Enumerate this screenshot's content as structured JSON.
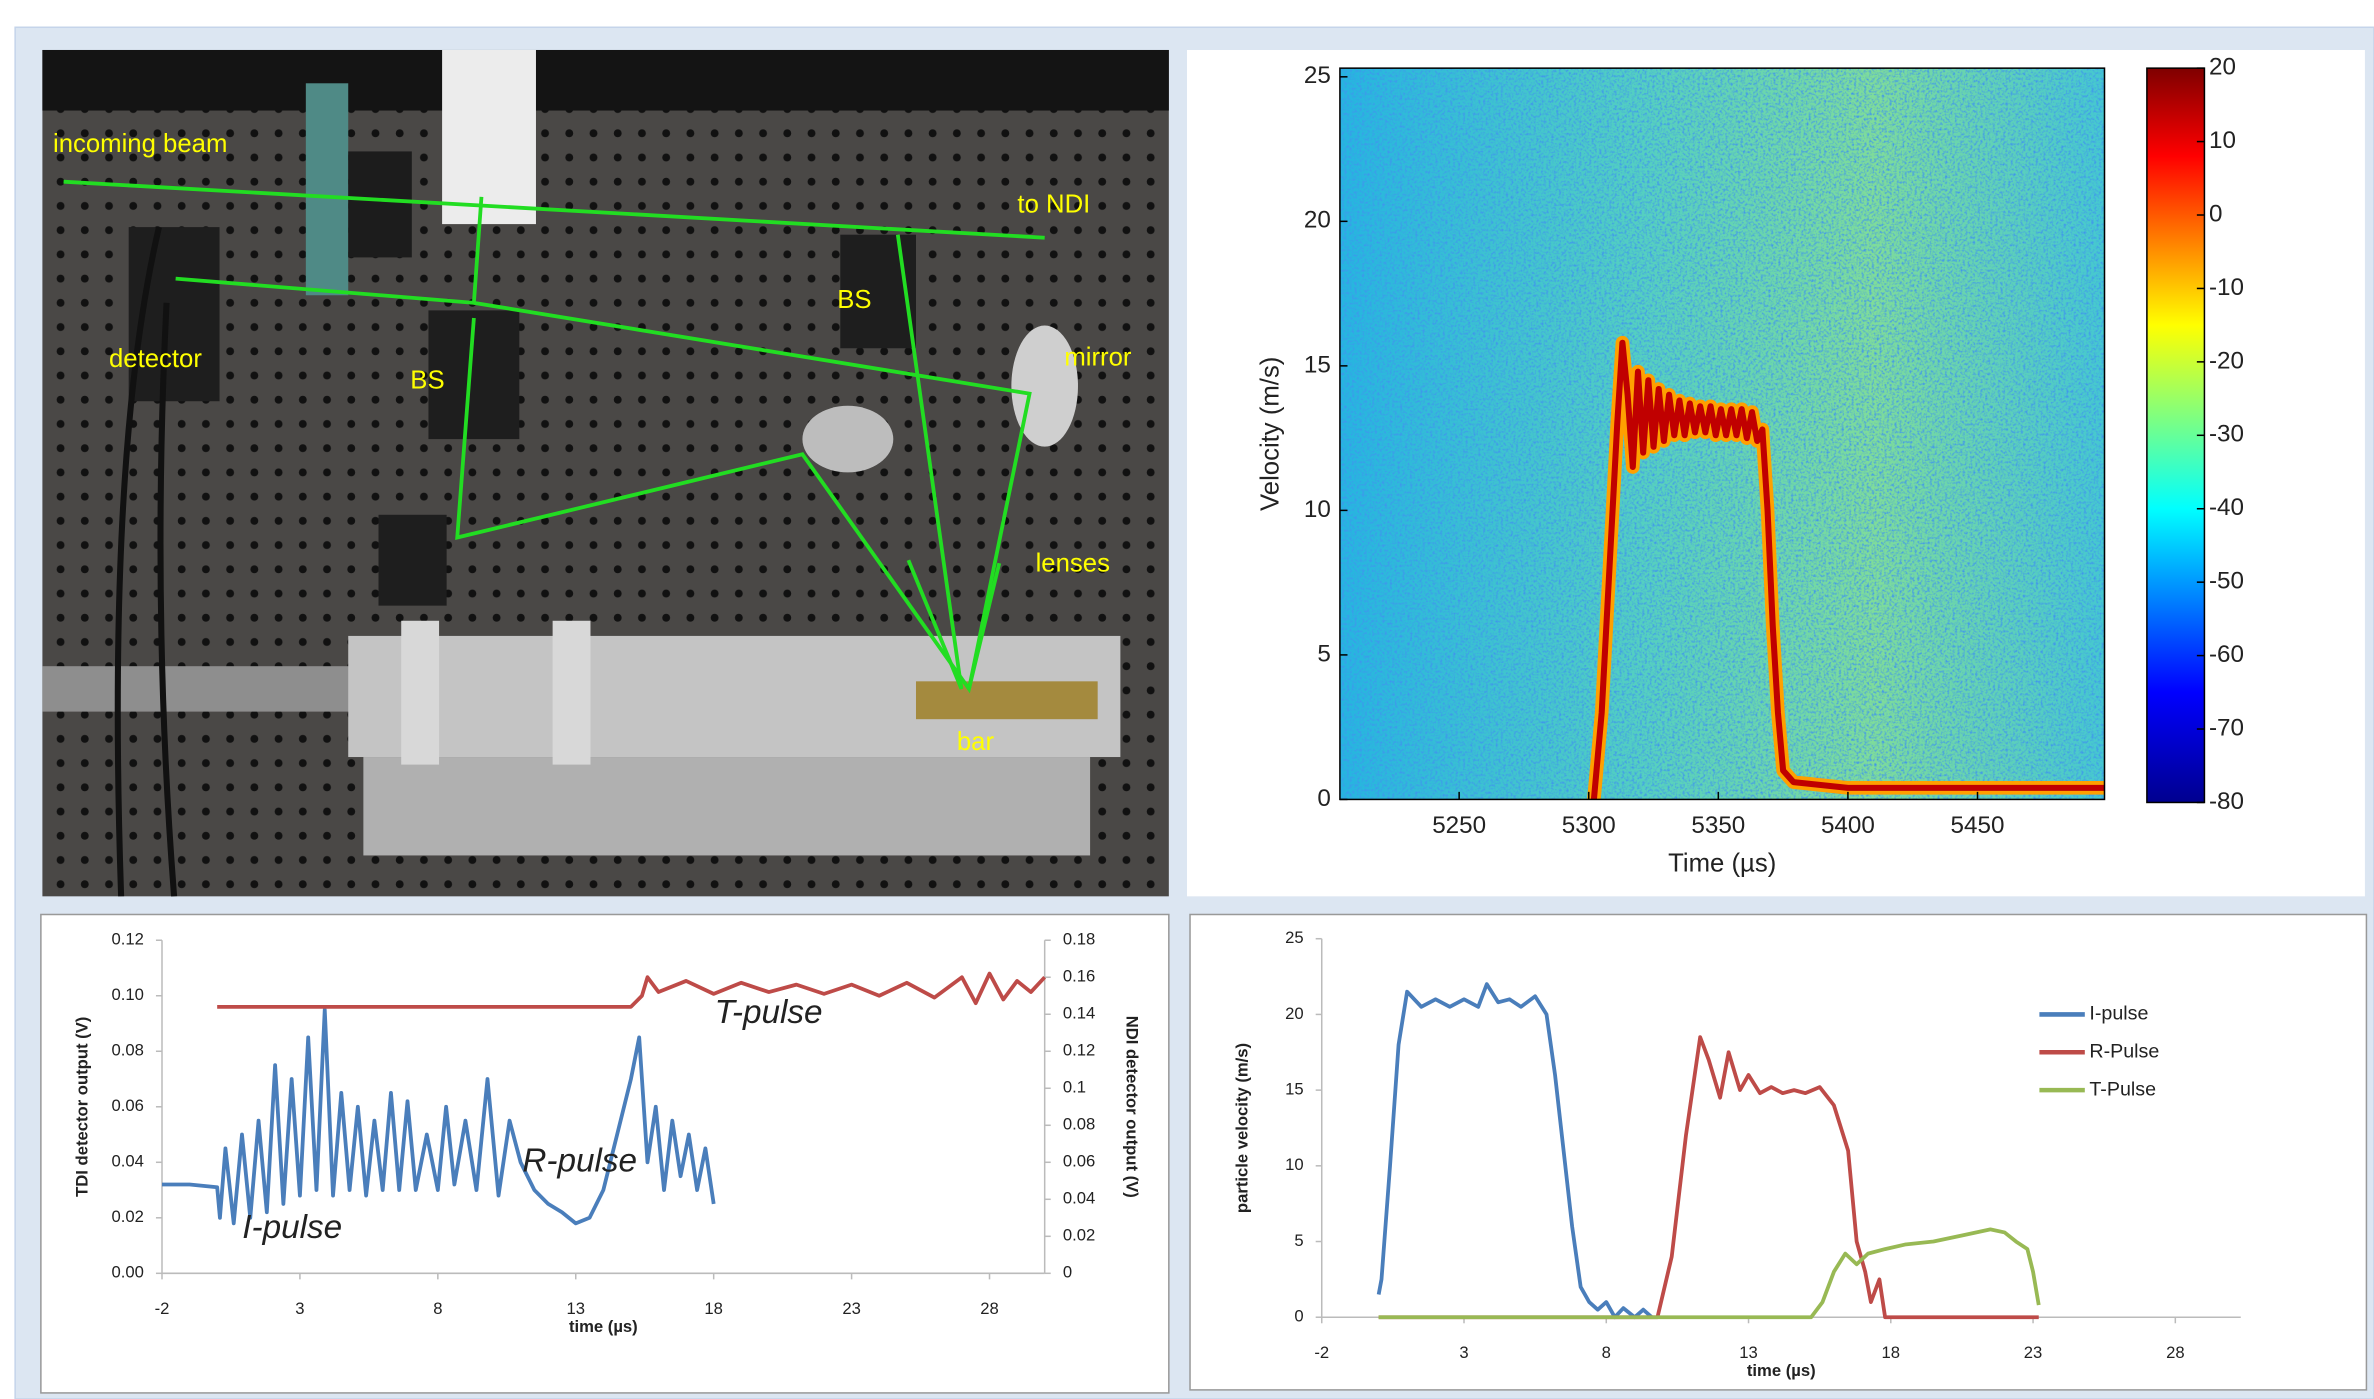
{
  "photo": {
    "labels": [
      "incoming beam",
      "to NDI",
      "BS",
      "BS",
      "detector",
      "mirror",
      "lenses",
      "bar"
    ]
  },
  "chart_data": [
    {
      "type": "spectrogram",
      "xlabel": "Time (µs)",
      "ylabel": "Velocity (m/s)",
      "xlim": [
        5204,
        5499
      ],
      "xticks": [
        5250,
        5300,
        5350,
        5400,
        5450
      ],
      "ylim": [
        0,
        25.3
      ],
      "yticks": [
        0,
        5,
        10,
        15,
        20,
        25
      ],
      "clim": [
        -80,
        20
      ],
      "cticks": [
        20,
        10,
        0,
        -10,
        -20,
        -30,
        -40,
        -50,
        -60,
        -70,
        -80
      ],
      "series": [
        {
          "color": "#c00000",
          "x": [
            5302,
            5305,
            5308,
            5311,
            5313,
            5315,
            5317,
            5319,
            5321,
            5323,
            5325,
            5327,
            5329,
            5331,
            5333,
            5335,
            5337,
            5339,
            5341,
            5343,
            5345,
            5347,
            5349,
            5351,
            5353,
            5355,
            5357,
            5359,
            5361,
            5363,
            5365,
            5367,
            5369,
            5371,
            5373,
            5375,
            5377,
            5379,
            5400,
            5450,
            5499
          ],
          "values": [
            0,
            3,
            8,
            13,
            15.8,
            14,
            11.5,
            14.8,
            12,
            14.5,
            12.2,
            14.2,
            12.4,
            14,
            12.6,
            13.8,
            12.6,
            13.7,
            12.7,
            13.6,
            12.7,
            13.6,
            12.6,
            13.5,
            12.6,
            13.5,
            12.6,
            13.5,
            12.5,
            13.4,
            12.4,
            12.8,
            10,
            6,
            3,
            1,
            0.8,
            0.6,
            0.4,
            0.4,
            0.4
          ]
        }
      ]
    },
    {
      "type": "line",
      "xlabel": "time (µs)",
      "ylabel": "TDI detector output (V)",
      "y2label": "NDI detector output (V)",
      "xlim": [
        -2,
        30
      ],
      "xticks": [
        -2,
        3,
        8,
        13,
        18,
        23,
        28
      ],
      "ylim": [
        0,
        0.12
      ],
      "yticks": [
        {
          "value": 0,
          "label": "0.00"
        },
        0.02,
        0.04,
        0.06,
        0.08,
        {
          "value": 0.1,
          "label": "0.10"
        },
        0.12
      ],
      "y2lim": [
        0,
        0.18
      ],
      "y2ticks": [
        0,
        0.02,
        0.04,
        0.06,
        0.08,
        0.1,
        0.12,
        0.14,
        0.16,
        0.18
      ],
      "annotations": [
        "I-pulse",
        "R-pulse",
        "T-pulse"
      ],
      "series": [
        {
          "color": "#4a7ebb",
          "x": [
            -2,
            -1,
            0,
            0.1,
            0.3,
            0.6,
            0.9,
            1.2,
            1.5,
            1.8,
            2.1,
            2.4,
            2.7,
            3.0,
            3.3,
            3.6,
            3.9,
            4.2,
            4.5,
            4.8,
            5.1,
            5.4,
            5.7,
            6.0,
            6.3,
            6.6,
            6.9,
            7.2,
            7.6,
            8.0,
            8.3,
            8.6,
            9.0,
            9.4,
            9.8,
            10.2,
            10.6,
            11,
            11.5,
            12,
            12.5,
            13,
            13.5,
            14,
            14.5,
            15,
            15.3,
            15.6,
            15.9,
            16.2,
            16.5,
            16.8,
            17.1,
            17.4,
            17.7,
            18.0
          ],
          "values": [
            0.032,
            0.032,
            0.031,
            0.02,
            0.045,
            0.018,
            0.05,
            0.02,
            0.055,
            0.022,
            0.075,
            0.025,
            0.07,
            0.028,
            0.085,
            0.03,
            0.095,
            0.028,
            0.065,
            0.03,
            0.06,
            0.028,
            0.055,
            0.03,
            0.065,
            0.03,
            0.062,
            0.03,
            0.05,
            0.03,
            0.06,
            0.032,
            0.055,
            0.03,
            0.07,
            0.028,
            0.055,
            0.04,
            0.03,
            0.025,
            0.022,
            0.018,
            0.02,
            0.03,
            0.05,
            0.07,
            0.085,
            0.04,
            0.06,
            0.03,
            0.055,
            0.035,
            0.05,
            0.03,
            0.045,
            0.025
          ]
        },
        {
          "color": "#be4b48",
          "axis": "y2",
          "x": [
            0,
            5,
            10,
            15,
            15.4,
            15.6,
            16,
            17,
            18,
            19,
            20,
            21,
            22,
            23,
            24,
            25,
            26,
            27,
            27.5,
            28,
            28.5,
            29,
            29.5,
            30
          ],
          "values": [
            0.144,
            0.144,
            0.144,
            0.144,
            0.15,
            0.16,
            0.152,
            0.158,
            0.151,
            0.157,
            0.152,
            0.156,
            0.151,
            0.156,
            0.15,
            0.157,
            0.149,
            0.16,
            0.146,
            0.162,
            0.148,
            0.158,
            0.152,
            0.16
          ]
        }
      ]
    },
    {
      "type": "line",
      "xlabel": "time (µs)",
      "ylabel": "particle velocity (m/s)",
      "legend": "right",
      "xlim": [
        -2,
        30.3
      ],
      "xticks": [
        -2,
        3,
        8,
        13,
        18,
        23,
        28
      ],
      "ylim": [
        0,
        25
      ],
      "yticks": [
        0,
        5,
        10,
        15,
        20,
        25
      ],
      "series": [
        {
          "name": "I-pulse",
          "color": "#4a7ebb",
          "x": [
            0,
            0.1,
            0.4,
            0.7,
            1.0,
            1.5,
            2,
            2.5,
            3,
            3.5,
            3.8,
            4.2,
            4.6,
            5,
            5.5,
            5.9,
            6.2,
            6.5,
            6.8,
            7.1,
            7.4,
            7.7,
            8,
            8.3,
            8.6,
            9,
            9.3,
            9.6
          ],
          "values": [
            1.5,
            2.5,
            10,
            18,
            21.5,
            20.5,
            21,
            20.5,
            21,
            20.5,
            22,
            20.8,
            21,
            20.5,
            21.2,
            20,
            16,
            11,
            6,
            2,
            1,
            0.5,
            1,
            0,
            0.6,
            0,
            0.5,
            0
          ]
        },
        {
          "name": "R-Pulse",
          "color": "#be4b48",
          "x": [
            0,
            9.8,
            10.3,
            10.8,
            11.3,
            11.6,
            12,
            12.3,
            12.7,
            13,
            13.4,
            13.8,
            14.2,
            14.6,
            15,
            15.5,
            16,
            16.5,
            16.8,
            17.1,
            17.3,
            17.6,
            17.8,
            18,
            20,
            23.2
          ],
          "values": [
            0,
            0,
            4,
            12,
            18.5,
            17,
            14.5,
            17.5,
            15,
            16,
            14.8,
            15.2,
            14.8,
            15,
            14.8,
            15.2,
            14,
            11,
            5,
            3,
            1,
            2.5,
            0,
            0,
            0,
            0
          ]
        },
        {
          "name": "T-Pulse",
          "color": "#98b954",
          "x": [
            0,
            15.2,
            15.6,
            16,
            16.4,
            16.8,
            17.2,
            17.8,
            18.5,
            19.5,
            20.5,
            21.5,
            22,
            22.4,
            22.8,
            23,
            23.2
          ],
          "values": [
            0,
            0,
            1,
            3,
            4.2,
            3.5,
            4.2,
            4.5,
            4.8,
            5.0,
            5.4,
            5.8,
            5.6,
            5.0,
            4.5,
            3,
            0.8
          ]
        }
      ]
    }
  ]
}
